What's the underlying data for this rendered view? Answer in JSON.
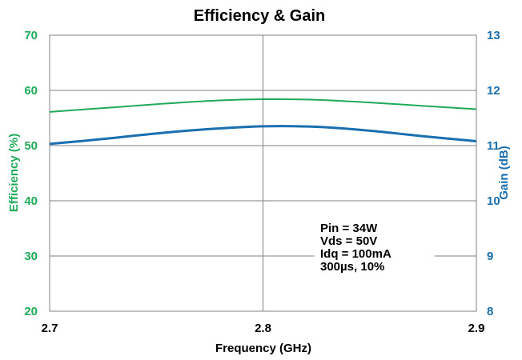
{
  "chart_data": {
    "type": "line",
    "title": "Efficiency & Gain",
    "xlabel": "Frequency (GHz)",
    "ylabel_left": "Efficiency (%)",
    "ylabel_right": "Gain (dB)",
    "xlim": [
      2.7,
      2.9
    ],
    "ylim_left": [
      20,
      70
    ],
    "ylim_right": [
      8,
      13
    ],
    "x_ticks": [
      "2.7",
      "2.8",
      "2.9"
    ],
    "y_ticks_left": [
      "20",
      "30",
      "40",
      "50",
      "60",
      "70"
    ],
    "y_ticks_right": [
      "8",
      "9",
      "10",
      "11",
      "12",
      "13"
    ],
    "grid": true,
    "series": [
      {
        "axis": "left",
        "color": "#1faa59",
        "x": [
          2.7,
          2.725,
          2.75,
          2.775,
          2.8,
          2.825,
          2.85,
          2.875,
          2.9
        ],
        "values": [
          56.1,
          56.8,
          57.5,
          58.1,
          58.4,
          58.3,
          57.8,
          57.2,
          56.6
        ]
      },
      {
        "axis": "right",
        "color": "#1a6fb0",
        "x": [
          2.7,
          2.725,
          2.75,
          2.775,
          2.8,
          2.825,
          2.85,
          2.875,
          2.9
        ],
        "values": [
          11.03,
          11.12,
          11.22,
          11.3,
          11.35,
          11.34,
          11.27,
          11.17,
          11.08
        ]
      }
    ],
    "annotations": [
      "Pin = 34W",
      "Vds = 50V",
      "Idq = 100mA",
      "300µs, 10%"
    ]
  }
}
